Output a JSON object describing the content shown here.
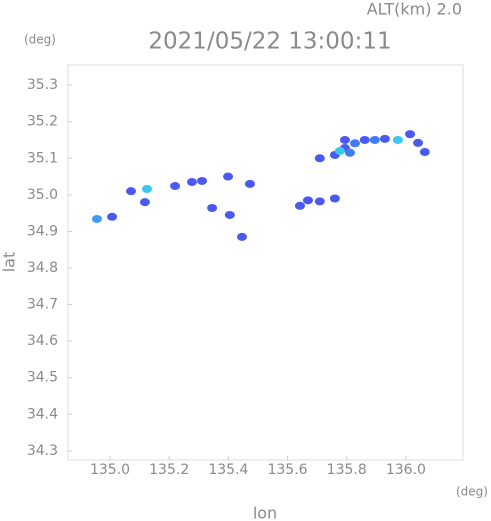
{
  "chart_data": {
    "type": "scatter",
    "altitude_label": "ALT(km)  2.0",
    "title": "2021/05/22 13:00:11",
    "y_unit": "(deg)",
    "x_unit": "(deg)",
    "xlabel": "lon",
    "ylabel": "lat",
    "x": [
      134.956,
      135.007,
      135.071,
      135.125,
      135.118,
      135.22,
      135.277,
      135.311,
      135.399,
      135.473,
      135.405,
      135.345,
      135.446,
      135.642,
      135.669,
      135.709,
      135.76,
      135.709,
      135.76,
      135.794,
      135.828,
      135.861,
      135.895,
      135.811,
      135.929,
      135.973,
      136.014,
      136.041,
      136.064,
      135.794,
      135.777
    ],
    "values": [
      34.934,
      34.94,
      35.01,
      35.016,
      34.98,
      35.024,
      35.035,
      35.038,
      35.05,
      35.03,
      34.945,
      34.964,
      34.885,
      34.97,
      34.985,
      34.982,
      34.99,
      35.1,
      35.109,
      35.128,
      35.141,
      35.15,
      35.15,
      35.115,
      35.153,
      35.15,
      35.166,
      35.142,
      35.117,
      35.15,
      35.12
    ],
    "colors": [
      "#3f9cf5",
      "#4a5af0",
      "#4a5af0",
      "#38c8f0",
      "#4a5af0",
      "#4a5af0",
      "#4a5af0",
      "#4a5af0",
      "#4a5af0",
      "#4a5af0",
      "#4a5af0",
      "#4a5af0",
      "#4a5af0",
      "#4a5af0",
      "#4a5af0",
      "#4a5af0",
      "#4a5af0",
      "#4a5af0",
      "#4a5af0",
      "#4a5af0",
      "#3f7cf5",
      "#4a5af0",
      "#3f7cf5",
      "#3f7cf5",
      "#4a5af0",
      "#38c8f0",
      "#4a5af0",
      "#4a5af0",
      "#4a5af0",
      "#4a5af0",
      "#38c8f0"
    ],
    "xlim": [
      134.858,
      136.193
    ],
    "ylim": [
      34.275,
      35.355
    ],
    "xticks": [
      {
        "value": 135,
        "label": "135.0"
      },
      135.2,
      135.4,
      135.6,
      135.8,
      {
        "value": 136,
        "label": "136.0"
      }
    ],
    "yticks": [
      34.3,
      34.4,
      34.5,
      34.6,
      34.7,
      34.8,
      34.9,
      {
        "value": 35,
        "label": "35.0"
      },
      35.1,
      35.2,
      35.3
    ]
  }
}
